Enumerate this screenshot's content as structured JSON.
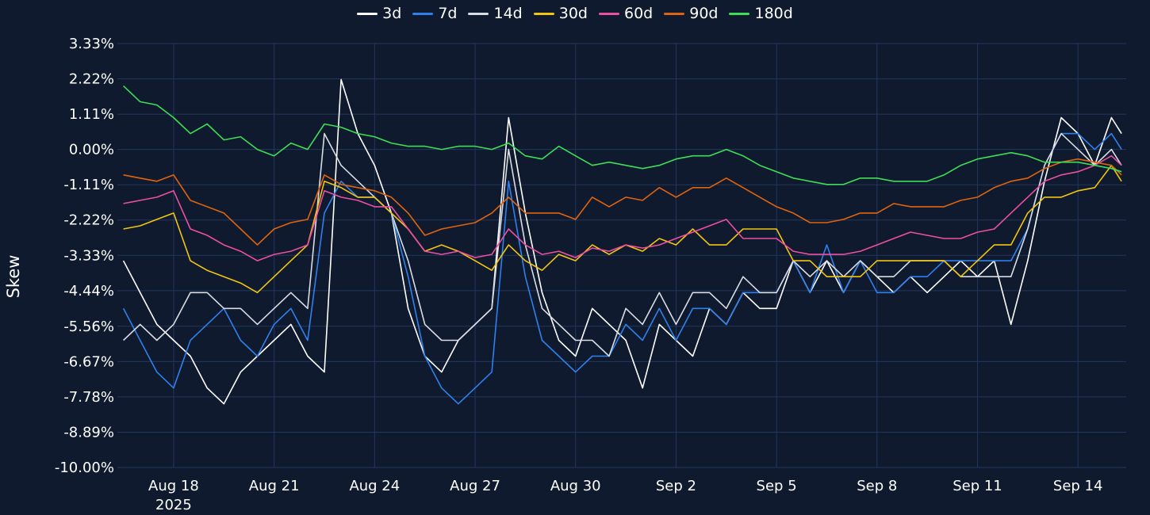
{
  "chart_data": {
    "type": "line",
    "title": "",
    "xlabel": "",
    "ylabel": "Skew",
    "ylim": [
      -10.0,
      3.33
    ],
    "yticks": [
      "3.33%",
      "2.22%",
      "1.11%",
      "0.00%",
      "-1.11%",
      "-2.22%",
      "-3.33%",
      "-4.44%",
      "-5.56%",
      "-6.67%",
      "-7.78%",
      "-8.89%",
      "-10.00%"
    ],
    "ytick_values": [
      3.33,
      2.22,
      1.11,
      0.0,
      -1.11,
      -2.22,
      -3.33,
      -4.44,
      -5.56,
      -6.67,
      -7.78,
      -8.89,
      -10.0
    ],
    "xticks": [
      "Aug 18",
      "Aug 21",
      "Aug 24",
      "Aug 27",
      "Aug 30",
      "Sep 2",
      "Sep 5",
      "Sep 8",
      "Sep 11",
      "Sep 14"
    ],
    "xtick_year_label": "2025",
    "x_unit": "days since Aug 18, 2025",
    "xlim": [
      -1.68,
      28.44
    ],
    "grid": true,
    "legend_position": "top-center",
    "series": [
      {
        "name": "3d",
        "color": "#ffffff",
        "x": [
          -1.5,
          -1,
          -0.5,
          0,
          0.5,
          1,
          1.5,
          2,
          2.5,
          3,
          3.5,
          4,
          4.5,
          5,
          5.5,
          6,
          6.5,
          7,
          7.5,
          8,
          8.5,
          9,
          9.5,
          10,
          10.5,
          11,
          11.5,
          12,
          12.5,
          13,
          13.5,
          14,
          14.5,
          15,
          15.5,
          16,
          16.5,
          17,
          17.5,
          18,
          18.5,
          19,
          19.5,
          20,
          20.5,
          21,
          21.5,
          22,
          22.5,
          23,
          23.5,
          24,
          24.5,
          25,
          25.5,
          26,
          26.5,
          27,
          27.5,
          28,
          28.3
        ],
        "y": [
          -3.5,
          -4.5,
          -5.5,
          -6,
          -6.5,
          -7.5,
          -8,
          -7,
          -6.5,
          -6,
          -5.5,
          -6.5,
          -7,
          2.2,
          0.5,
          -0.5,
          -2,
          -5,
          -6.5,
          -7,
          -6,
          -5.5,
          -5,
          1,
          -2,
          -4.5,
          -6,
          -6.5,
          -5,
          -5.5,
          -6,
          -7.5,
          -5.5,
          -6,
          -6.5,
          -5,
          -5.5,
          -4.5,
          -5,
          -5,
          -3.5,
          -4.5,
          -3.5,
          -4.5,
          -3.5,
          -4,
          -4.5,
          -4,
          -4.5,
          -4,
          -3.5,
          -4,
          -3.5,
          -5.5,
          -3.5,
          -1,
          1,
          0.5,
          -0.5,
          1,
          0.5
        ]
      },
      {
        "name": "7d",
        "color": "#2f80ed",
        "x": [
          -1.5,
          -1,
          -0.5,
          0,
          0.5,
          1,
          1.5,
          2,
          2.5,
          3,
          3.5,
          4,
          4.5,
          5,
          5.5,
          6,
          6.5,
          7,
          7.5,
          8,
          8.5,
          9,
          9.5,
          10,
          10.5,
          11,
          11.5,
          12,
          12.5,
          13,
          13.5,
          14,
          14.5,
          15,
          15.5,
          16,
          16.5,
          17,
          17.5,
          18,
          18.5,
          19,
          19.5,
          20,
          20.5,
          21,
          21.5,
          22,
          22.5,
          23,
          23.5,
          24,
          24.5,
          25,
          25.5,
          26,
          26.5,
          27,
          27.5,
          28,
          28.3
        ],
        "y": [
          -5,
          -6,
          -7,
          -7.5,
          -6,
          -5.5,
          -5,
          -6,
          -6.5,
          -5.5,
          -5,
          -6,
          -2,
          -1,
          -1.5,
          -1.5,
          -2,
          -4,
          -6.5,
          -7.5,
          -8,
          -7.5,
          -7,
          -1,
          -4,
          -6,
          -6.5,
          -7,
          -6.5,
          -6.5,
          -5.5,
          -6,
          -5,
          -6,
          -5,
          -5,
          -5.5,
          -4.5,
          -4.5,
          -4.5,
          -3.5,
          -4.5,
          -3,
          -4.5,
          -3.5,
          -4.5,
          -4.5,
          -4,
          -4,
          -3.5,
          -3.5,
          -3.5,
          -3.5,
          -3.5,
          -2.5,
          -0.5,
          0.5,
          0.5,
          0,
          0.5,
          0
        ]
      },
      {
        "name": "14d",
        "color": "#d9dce3",
        "x": [
          -1.5,
          -1,
          -0.5,
          0,
          0.5,
          1,
          1.5,
          2,
          2.5,
          3,
          3.5,
          4,
          4.5,
          5,
          5.5,
          6,
          6.5,
          7,
          7.5,
          8,
          8.5,
          9,
          9.5,
          10,
          10.5,
          11,
          11.5,
          12,
          12.5,
          13,
          13.5,
          14,
          14.5,
          15,
          15.5,
          16,
          16.5,
          17,
          17.5,
          18,
          18.5,
          19,
          19.5,
          20,
          20.5,
          21,
          21.5,
          22,
          22.5,
          23,
          23.5,
          24,
          24.5,
          25,
          25.5,
          26,
          26.5,
          27,
          27.5,
          28,
          28.3
        ],
        "y": [
          -6,
          -5.5,
          -6,
          -5.5,
          -4.5,
          -4.5,
          -5,
          -5,
          -5.5,
          -5,
          -4.5,
          -5,
          0.5,
          -0.5,
          -1,
          -1.5,
          -2,
          -3.5,
          -5.5,
          -6,
          -6,
          -5.5,
          -5,
          0,
          -3,
          -5,
          -5.5,
          -6,
          -6,
          -6.5,
          -5,
          -5.5,
          -4.5,
          -5.5,
          -4.5,
          -4.5,
          -5,
          -4,
          -4.5,
          -4.5,
          -3.5,
          -4,
          -3.5,
          -4,
          -3.5,
          -4,
          -4,
          -3.5,
          -3.5,
          -3.5,
          -4,
          -4,
          -4,
          -4,
          -2.5,
          -0.5,
          0.5,
          0,
          -0.5,
          0,
          -0.5
        ]
      },
      {
        "name": "30d",
        "color": "#f2c511",
        "x": [
          -1.5,
          -1,
          -0.5,
          0,
          0.5,
          1,
          1.5,
          2,
          2.5,
          3,
          3.5,
          4,
          4.5,
          5,
          5.5,
          6,
          6.5,
          7,
          7.5,
          8,
          8.5,
          9,
          9.5,
          10,
          10.5,
          11,
          11.5,
          12,
          12.5,
          13,
          13.5,
          14,
          14.5,
          15,
          15.5,
          16,
          16.5,
          17,
          17.5,
          18,
          18.5,
          19,
          19.5,
          20,
          20.5,
          21,
          21.5,
          22,
          22.5,
          23,
          23.5,
          24,
          24.5,
          25,
          25.5,
          26,
          26.5,
          27,
          27.5,
          28,
          28.3
        ],
        "y": [
          -2.5,
          -2.4,
          -2.2,
          -2,
          -3.5,
          -3.8,
          -4,
          -4.2,
          -4.5,
          -4,
          -3.5,
          -3,
          -1,
          -1.2,
          -1.5,
          -1.5,
          -2,
          -2.5,
          -3.2,
          -3,
          -3.2,
          -3.5,
          -3.8,
          -3,
          -3.5,
          -3.8,
          -3.3,
          -3.5,
          -3,
          -3.3,
          -3,
          -3.2,
          -2.8,
          -3,
          -2.5,
          -3,
          -3,
          -2.5,
          -2.5,
          -2.5,
          -3.5,
          -3.5,
          -4,
          -4,
          -4,
          -3.5,
          -3.5,
          -3.5,
          -3.5,
          -3.5,
          -4,
          -3.5,
          -3,
          -3,
          -2,
          -1.5,
          -1.5,
          -1.3,
          -1.2,
          -0.5,
          -1
        ]
      },
      {
        "name": "60d",
        "color": "#ec4fa1",
        "x": [
          -1.5,
          -1,
          -0.5,
          0,
          0.5,
          1,
          1.5,
          2,
          2.5,
          3,
          3.5,
          4,
          4.5,
          5,
          5.5,
          6,
          6.5,
          7,
          7.5,
          8,
          8.5,
          9,
          9.5,
          10,
          10.5,
          11,
          11.5,
          12,
          12.5,
          13,
          13.5,
          14,
          14.5,
          15,
          15.5,
          16,
          16.5,
          17,
          17.5,
          18,
          18.5,
          19,
          19.5,
          20,
          20.5,
          21,
          21.5,
          22,
          22.5,
          23,
          23.5,
          24,
          24.5,
          25,
          25.5,
          26,
          26.5,
          27,
          27.5,
          28,
          28.3
        ],
        "y": [
          -1.7,
          -1.6,
          -1.5,
          -1.3,
          -2.5,
          -2.7,
          -3,
          -3.2,
          -3.5,
          -3.3,
          -3.2,
          -3,
          -1.3,
          -1.5,
          -1.6,
          -1.8,
          -1.8,
          -2.5,
          -3.2,
          -3.3,
          -3.2,
          -3.4,
          -3.3,
          -2.5,
          -3,
          -3.3,
          -3.2,
          -3.4,
          -3.1,
          -3.2,
          -3,
          -3.1,
          -3,
          -2.8,
          -2.6,
          -2.4,
          -2.2,
          -2.8,
          -2.8,
          -2.8,
          -3.2,
          -3.3,
          -3.3,
          -3.3,
          -3.2,
          -3,
          -2.8,
          -2.6,
          -2.7,
          -2.8,
          -2.8,
          -2.6,
          -2.5,
          -2,
          -1.5,
          -1,
          -0.8,
          -0.7,
          -0.5,
          -0.2,
          -0.5
        ]
      },
      {
        "name": "90d",
        "color": "#e0640e",
        "x": [
          -1.5,
          -1,
          -0.5,
          0,
          0.5,
          1,
          1.5,
          2,
          2.5,
          3,
          3.5,
          4,
          4.5,
          5,
          5.5,
          6,
          6.5,
          7,
          7.5,
          8,
          8.5,
          9,
          9.5,
          10,
          10.5,
          11,
          11.5,
          12,
          12.5,
          13,
          13.5,
          14,
          14.5,
          15,
          15.5,
          16,
          16.5,
          17,
          17.5,
          18,
          18.5,
          19,
          19.5,
          20,
          20.5,
          21,
          21.5,
          22,
          22.5,
          23,
          23.5,
          24,
          24.5,
          25,
          25.5,
          26,
          26.5,
          27,
          27.5,
          28,
          28.3
        ],
        "y": [
          -0.8,
          -0.9,
          -1,
          -0.8,
          -1.6,
          -1.8,
          -2,
          -2.5,
          -3,
          -2.5,
          -2.3,
          -2.2,
          -0.8,
          -1.1,
          -1.2,
          -1.3,
          -1.5,
          -2,
          -2.7,
          -2.5,
          -2.4,
          -2.3,
          -2,
          -1.5,
          -2,
          -2,
          -2,
          -2.2,
          -1.5,
          -1.8,
          -1.5,
          -1.6,
          -1.2,
          -1.5,
          -1.2,
          -1.2,
          -0.9,
          -1.2,
          -1.5,
          -1.8,
          -2,
          -2.3,
          -2.3,
          -2.2,
          -2,
          -2,
          -1.7,
          -1.8,
          -1.8,
          -1.8,
          -1.6,
          -1.5,
          -1.2,
          -1,
          -0.9,
          -0.6,
          -0.4,
          -0.3,
          -0.4,
          -0.5,
          -0.8
        ]
      },
      {
        "name": "180d",
        "color": "#3dde55",
        "x": [
          -1.5,
          -1,
          -0.5,
          0,
          0.5,
          1,
          1.5,
          2,
          2.5,
          3,
          3.5,
          4,
          4.5,
          5,
          5.5,
          6,
          6.5,
          7,
          7.5,
          8,
          8.5,
          9,
          9.5,
          10,
          10.5,
          11,
          11.5,
          12,
          12.5,
          13,
          13.5,
          14,
          14.5,
          15,
          15.5,
          16,
          16.5,
          17,
          17.5,
          18,
          18.5,
          19,
          19.5,
          20,
          20.5,
          21,
          21.5,
          22,
          22.5,
          23,
          23.5,
          24,
          24.5,
          25,
          25.5,
          26,
          26.5,
          27,
          27.5,
          28,
          28.3
        ],
        "y": [
          2,
          1.5,
          1.4,
          1,
          0.5,
          0.8,
          0.3,
          0.4,
          0,
          -0.2,
          0.2,
          0,
          0.8,
          0.7,
          0.5,
          0.4,
          0.2,
          0.1,
          0.1,
          0,
          0.1,
          0.1,
          0,
          0.2,
          -0.2,
          -0.3,
          0.1,
          -0.2,
          -0.5,
          -0.4,
          -0.5,
          -0.6,
          -0.5,
          -0.3,
          -0.2,
          -0.2,
          0,
          -0.2,
          -0.5,
          -0.7,
          -0.9,
          -1,
          -1.1,
          -1.1,
          -0.9,
          -0.9,
          -1,
          -1,
          -1,
          -0.8,
          -0.5,
          -0.3,
          -0.2,
          -0.1,
          -0.2,
          -0.4,
          -0.4,
          -0.4,
          -0.5,
          -0.6,
          -0.7
        ]
      }
    ]
  }
}
